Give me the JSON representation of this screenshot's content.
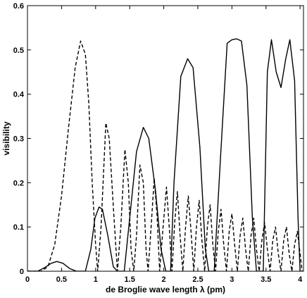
{
  "chart_data": {
    "type": "line",
    "xlabel": "de Broglie wave length λ (pm)",
    "ylabel": "visibility",
    "xlim": [
      0,
      4.05
    ],
    "ylim": [
      0,
      0.6
    ],
    "x_ticks": [
      "0",
      "0.5",
      "1",
      "1.5",
      "2",
      "2.5",
      "3",
      "3.5",
      "4"
    ],
    "y_ticks": [
      "0",
      "0.1",
      "0.2",
      "0.3",
      "0.4",
      "0.5",
      "0.6"
    ],
    "grid": false,
    "legend": "none",
    "series": [
      {
        "style": "solid",
        "color": "#000000",
        "points": [
          [
            0.0,
            0.0
          ],
          [
            0.15,
            0.0
          ],
          [
            0.25,
            0.008
          ],
          [
            0.35,
            0.018
          ],
          [
            0.43,
            0.022
          ],
          [
            0.52,
            0.018
          ],
          [
            0.62,
            0.006
          ],
          [
            0.72,
            0.0
          ],
          [
            0.85,
            0.0
          ],
          [
            0.93,
            0.05
          ],
          [
            0.99,
            0.12
          ],
          [
            1.05,
            0.145
          ],
          [
            1.1,
            0.14
          ],
          [
            1.18,
            0.08
          ],
          [
            1.26,
            0.01
          ],
          [
            1.32,
            0.0
          ],
          [
            1.42,
            0.0
          ],
          [
            1.5,
            0.12
          ],
          [
            1.6,
            0.27
          ],
          [
            1.7,
            0.325
          ],
          [
            1.78,
            0.3
          ],
          [
            1.88,
            0.18
          ],
          [
            1.96,
            0.05
          ],
          [
            2.03,
            0.0
          ],
          [
            2.1,
            0.0
          ],
          [
            2.15,
            0.2
          ],
          [
            2.25,
            0.44
          ],
          [
            2.35,
            0.48
          ],
          [
            2.43,
            0.46
          ],
          [
            2.53,
            0.28
          ],
          [
            2.61,
            0.05
          ],
          [
            2.66,
            0.0
          ],
          [
            2.74,
            0.0
          ],
          [
            2.83,
            0.25
          ],
          [
            2.93,
            0.515
          ],
          [
            3.0,
            0.523
          ],
          [
            3.07,
            0.525
          ],
          [
            3.14,
            0.52
          ],
          [
            3.22,
            0.42
          ],
          [
            3.3,
            0.12
          ],
          [
            3.36,
            0.0
          ],
          [
            3.46,
            0.0
          ],
          [
            3.52,
            0.45
          ],
          [
            3.58,
            0.523
          ],
          [
            3.65,
            0.45
          ],
          [
            3.72,
            0.415
          ],
          [
            3.79,
            0.48
          ],
          [
            3.85,
            0.523
          ],
          [
            3.92,
            0.43
          ],
          [
            3.97,
            0.12
          ],
          [
            4.0,
            0.0
          ]
        ]
      },
      {
        "style": "dashed",
        "color": "#000000",
        "points": [
          [
            0.0,
            0.0
          ],
          [
            0.2,
            0.0
          ],
          [
            0.3,
            0.01
          ],
          [
            0.4,
            0.06
          ],
          [
            0.5,
            0.17
          ],
          [
            0.6,
            0.32
          ],
          [
            0.7,
            0.46
          ],
          [
            0.78,
            0.52
          ],
          [
            0.85,
            0.49
          ],
          [
            0.9,
            0.38
          ],
          [
            0.95,
            0.2
          ],
          [
            1.0,
            0.06
          ],
          [
            1.03,
            0.0
          ],
          [
            1.08,
            0.1
          ],
          [
            1.15,
            0.335
          ],
          [
            1.2,
            0.3
          ],
          [
            1.27,
            0.12
          ],
          [
            1.32,
            0.0
          ],
          [
            1.37,
            0.1
          ],
          [
            1.43,
            0.275
          ],
          [
            1.48,
            0.2
          ],
          [
            1.52,
            0.05
          ],
          [
            1.56,
            0.0
          ],
          [
            1.6,
            0.08
          ],
          [
            1.65,
            0.24
          ],
          [
            1.7,
            0.2
          ],
          [
            1.74,
            0.05
          ],
          [
            1.77,
            0.0
          ],
          [
            1.81,
            0.09
          ],
          [
            1.86,
            0.21
          ],
          [
            1.9,
            0.13
          ],
          [
            1.94,
            0.0
          ],
          [
            1.99,
            0.1
          ],
          [
            2.04,
            0.19
          ],
          [
            2.08,
            0.1
          ],
          [
            2.12,
            0.0
          ],
          [
            2.16,
            0.11
          ],
          [
            2.2,
            0.18
          ],
          [
            2.24,
            0.08
          ],
          [
            2.28,
            0.0
          ],
          [
            2.32,
            0.1
          ],
          [
            2.36,
            0.17
          ],
          [
            2.4,
            0.09
          ],
          [
            2.44,
            0.0
          ],
          [
            2.48,
            0.1
          ],
          [
            2.52,
            0.16
          ],
          [
            2.56,
            0.07
          ],
          [
            2.6,
            0.0
          ],
          [
            2.64,
            0.1
          ],
          [
            2.68,
            0.15
          ],
          [
            2.72,
            0.06
          ],
          [
            2.76,
            0.0
          ],
          [
            2.8,
            0.09
          ],
          [
            2.84,
            0.14
          ],
          [
            2.88,
            0.06
          ],
          [
            2.92,
            0.0
          ],
          [
            2.96,
            0.09
          ],
          [
            3.0,
            0.13
          ],
          [
            3.04,
            0.06
          ],
          [
            3.08,
            0.0
          ],
          [
            3.12,
            0.08
          ],
          [
            3.16,
            0.12
          ],
          [
            3.2,
            0.05
          ],
          [
            3.24,
            0.0
          ],
          [
            3.28,
            0.08
          ],
          [
            3.32,
            0.12
          ],
          [
            3.36,
            0.05
          ],
          [
            3.4,
            0.0
          ],
          [
            3.44,
            0.07
          ],
          [
            3.48,
            0.11
          ],
          [
            3.52,
            0.05
          ],
          [
            3.56,
            0.0
          ],
          [
            3.6,
            0.07
          ],
          [
            3.64,
            0.1
          ],
          [
            3.68,
            0.04
          ],
          [
            3.72,
            0.0
          ],
          [
            3.76,
            0.07
          ],
          [
            3.8,
            0.1
          ],
          [
            3.84,
            0.04
          ],
          [
            3.88,
            0.0
          ],
          [
            3.92,
            0.06
          ],
          [
            3.96,
            0.09
          ],
          [
            4.0,
            0.04
          ],
          [
            4.03,
            0.0
          ]
        ]
      }
    ]
  }
}
